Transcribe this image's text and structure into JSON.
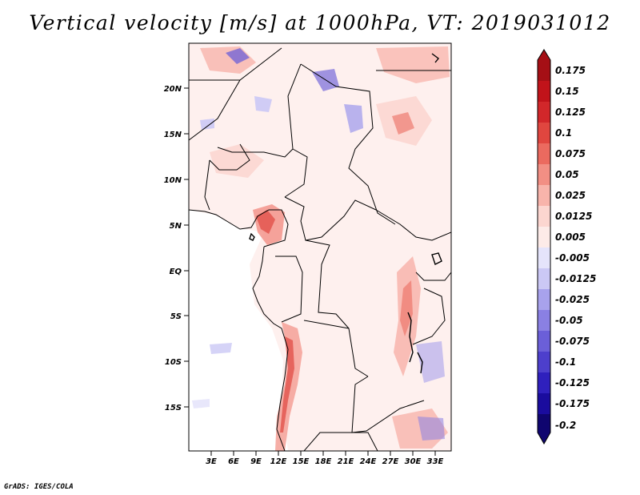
{
  "title": "Vertical velocity [m/s] at 1000hPa, VT: 2019031012",
  "credit": "GrADS: IGES/COLA",
  "map": {
    "lat_labels": [
      "20N",
      "15N",
      "10N",
      "5N",
      "EQ",
      "5S",
      "10S",
      "15S"
    ],
    "lon_labels": [
      "3E",
      "6E",
      "9E",
      "12E",
      "15E",
      "18E",
      "21E",
      "24E",
      "27E",
      "30E",
      "33E"
    ]
  },
  "colorbar": {
    "labels": [
      "0.175",
      "0.15",
      "0.125",
      "0.1",
      "0.075",
      "0.05",
      "0.025",
      "0.0125",
      "0.005",
      "-0.005",
      "-0.0125",
      "-0.025",
      "-0.05",
      "-0.075",
      "-0.1",
      "-0.125",
      "-0.175",
      "-0.2"
    ],
    "colors": [
      "#a50f15",
      "#c1131a",
      "#d2272a",
      "#e0463f",
      "#eb6a5f",
      "#f28f84",
      "#f8b4ab",
      "#fcd6d0",
      "#fdebe8",
      "#ffffff",
      "#e5e4fb",
      "#cbc8f5",
      "#a8a2ec",
      "#8a80e3",
      "#6b5fd8",
      "#4d3fcc",
      "#2f20bd",
      "#1a0c9e",
      "#0f056f"
    ]
  }
}
